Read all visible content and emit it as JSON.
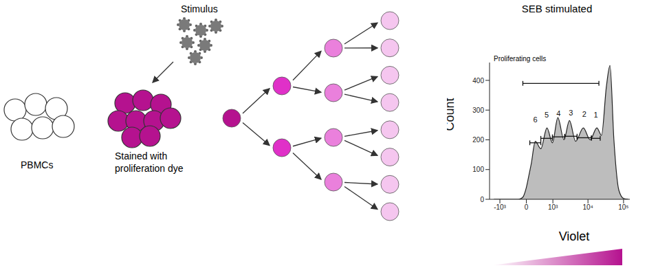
{
  "diagram": {
    "pbmc_label": "PBMCs",
    "stimulus_label": "Stimulus",
    "stain_label": [
      "Stained with",
      "proliferation dye"
    ],
    "generations": [
      1,
      2,
      4,
      8
    ],
    "generation_colors": [
      "#b5128f",
      "#e030c8",
      "#ea80dc",
      "#f5c6ef"
    ]
  },
  "chart_data": {
    "type": "area",
    "title": "SEB stimulated",
    "x_label": "Violet",
    "y_label": "Count",
    "log": "x",
    "grid": false,
    "color": "#bdbdbd",
    "x": [
      -1500,
      -200,
      -100,
      0,
      60,
      120,
      227,
      400,
      655,
      970,
      1400,
      2100,
      3000,
      4500,
      7400,
      11500,
      17800,
      24000,
      33000,
      41600,
      53600,
      74000,
      100000,
      135000
    ],
    "values": [
      0,
      0,
      5,
      40,
      80,
      120,
      195,
      170,
      240,
      190,
      275,
      200,
      265,
      195,
      240,
      200,
      240,
      215,
      380,
      450,
      200,
      30,
      3,
      0
    ],
    "xlim": [
      -2000,
      150000
    ],
    "xticks": [
      {
        "value": -1000,
        "label": "-10³"
      },
      0,
      {
        "value": 1000,
        "label": "10³"
      },
      {
        "value": 10000,
        "label": "10⁴"
      },
      {
        "value": 100000,
        "label": "10⁵"
      }
    ],
    "ylim": [
      0,
      460
    ],
    "yticks": [
      0,
      100,
      200,
      300,
      400
    ],
    "proliferating_gate": {
      "label": "Proliferating cells",
      "x": [
        -86,
        20300
      ],
      "y": 390
    },
    "gates": [
      {
        "label": "6",
        "x": [
          83,
          400
        ],
        "y": 190
      },
      {
        "label": "5",
        "x": [
          400,
          970
        ],
        "y": 205
      },
      {
        "label": "4",
        "x": [
          970,
          2210
        ],
        "y": 210
      },
      {
        "label": "3",
        "x": [
          2210,
          4940
        ],
        "y": 212
      },
      {
        "label": "2",
        "x": [
          4940,
          12500
        ],
        "y": 207
      },
      {
        "label": "1",
        "x": [
          12500,
          22100
        ],
        "y": 205
      }
    ]
  }
}
